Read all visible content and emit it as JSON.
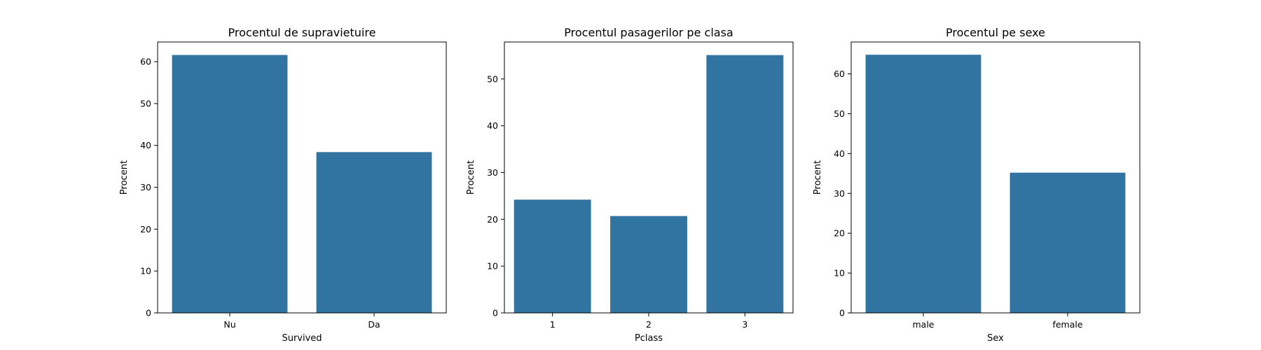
{
  "colors": {
    "bar": "#3274a1",
    "axis": "#000000",
    "background": "#ffffff"
  },
  "chart_data": [
    {
      "type": "bar",
      "title": "Procentul de supravietuire",
      "xlabel": "Survived",
      "ylabel": "Procent",
      "categories": [
        "Nu",
        "Da"
      ],
      "values": [
        61.6,
        38.4
      ],
      "ylim": [
        0,
        64.7
      ],
      "yticks": [
        0,
        10,
        20,
        30,
        40,
        50,
        60
      ],
      "grid": false,
      "legend": null
    },
    {
      "type": "bar",
      "title": "Procentul pasagerilor pe clasa",
      "xlabel": "Pclass",
      "ylabel": "Procent",
      "categories": [
        "1",
        "2",
        "3"
      ],
      "values": [
        24.2,
        20.7,
        55.1
      ],
      "ylim": [
        0,
        57.9
      ],
      "yticks": [
        0,
        10,
        20,
        30,
        40,
        50
      ],
      "grid": false,
      "legend": null
    },
    {
      "type": "bar",
      "title": "Procentul pe sexe",
      "xlabel": "Sex",
      "ylabel": "Procent",
      "categories": [
        "male",
        "female"
      ],
      "values": [
        64.8,
        35.2
      ],
      "ylim": [
        0,
        68.0
      ],
      "yticks": [
        0,
        10,
        20,
        30,
        40,
        50,
        60
      ],
      "grid": false,
      "legend": null
    }
  ]
}
